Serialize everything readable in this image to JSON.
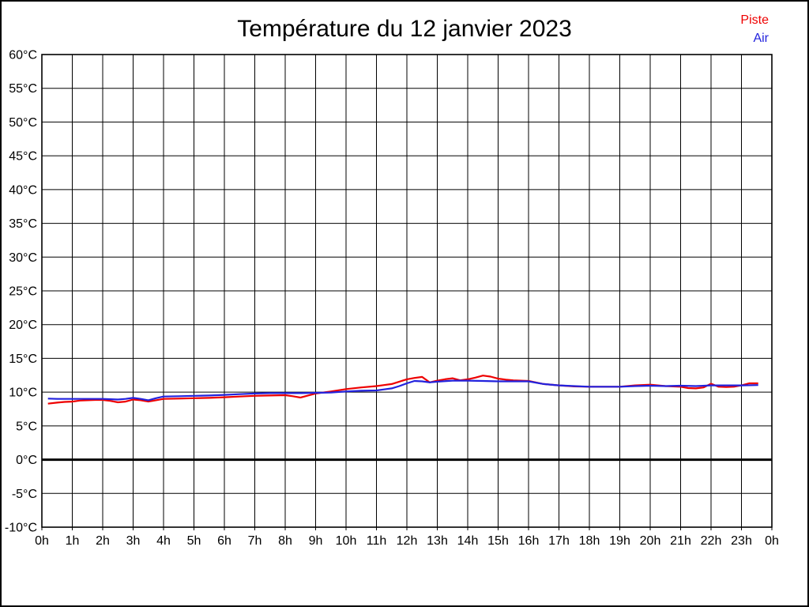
{
  "page": {
    "background": "#ffffff",
    "border_color": "#000000"
  },
  "chart_data": {
    "type": "line",
    "title": "Température du 12 janvier 2023",
    "xlabel": "",
    "ylabel": "",
    "xlim": [
      0,
      24
    ],
    "ylim": [
      -10,
      60
    ],
    "grid": true,
    "grid_color": "#000000",
    "zero_line": {
      "value": 0,
      "color": "#000000",
      "width": 3
    },
    "x_ticks": [
      {
        "v": 0,
        "label": "0h"
      },
      {
        "v": 1,
        "label": "1h"
      },
      {
        "v": 2,
        "label": "2h"
      },
      {
        "v": 3,
        "label": "3h"
      },
      {
        "v": 4,
        "label": "4h"
      },
      {
        "v": 5,
        "label": "5h"
      },
      {
        "v": 6,
        "label": "6h"
      },
      {
        "v": 7,
        "label": "7h"
      },
      {
        "v": 8,
        "label": "8h"
      },
      {
        "v": 9,
        "label": "9h"
      },
      {
        "v": 10,
        "label": "10h"
      },
      {
        "v": 11,
        "label": "11h"
      },
      {
        "v": 12,
        "label": "12h"
      },
      {
        "v": 13,
        "label": "13h"
      },
      {
        "v": 14,
        "label": "14h"
      },
      {
        "v": 15,
        "label": "15h"
      },
      {
        "v": 16,
        "label": "16h"
      },
      {
        "v": 17,
        "label": "17h"
      },
      {
        "v": 18,
        "label": "18h"
      },
      {
        "v": 19,
        "label": "19h"
      },
      {
        "v": 20,
        "label": "20h"
      },
      {
        "v": 21,
        "label": "21h"
      },
      {
        "v": 22,
        "label": "22h"
      },
      {
        "v": 23,
        "label": "23h"
      },
      {
        "v": 24,
        "label": "0h"
      }
    ],
    "y_ticks": [
      {
        "v": -10,
        "label": "-10°C"
      },
      {
        "v": -5,
        "label": "-5°C"
      },
      {
        "v": 0,
        "label": "0°C"
      },
      {
        "v": 5,
        "label": "5°C"
      },
      {
        "v": 10,
        "label": "10°C"
      },
      {
        "v": 15,
        "label": "15°C"
      },
      {
        "v": 20,
        "label": "20°C"
      },
      {
        "v": 25,
        "label": "25°C"
      },
      {
        "v": 30,
        "label": "30°C"
      },
      {
        "v": 35,
        "label": "35°C"
      },
      {
        "v": 40,
        "label": "40°C"
      },
      {
        "v": 45,
        "label": "45°C"
      },
      {
        "v": 50,
        "label": "50°C"
      },
      {
        "v": 55,
        "label": "55°C"
      },
      {
        "v": 60,
        "label": "60°C"
      }
    ],
    "legend": {
      "position": "top-right",
      "entries": [
        {
          "name": "Piste",
          "color": "#ee0000"
        },
        {
          "name": "Air",
          "color": "#2222dd"
        }
      ]
    },
    "series": [
      {
        "name": "Piste",
        "color": "#ee0000",
        "points": [
          [
            0.2,
            8.3
          ],
          [
            0.5,
            8.45
          ],
          [
            0.75,
            8.55
          ],
          [
            1,
            8.6
          ],
          [
            1.25,
            8.75
          ],
          [
            1.5,
            8.8
          ],
          [
            1.75,
            8.85
          ],
          [
            2,
            8.85
          ],
          [
            2.25,
            8.7
          ],
          [
            2.5,
            8.5
          ],
          [
            2.75,
            8.6
          ],
          [
            3,
            8.9
          ],
          [
            3.25,
            8.8
          ],
          [
            3.5,
            8.6
          ],
          [
            3.75,
            8.8
          ],
          [
            4,
            9.0
          ],
          [
            4.5,
            9.05
          ],
          [
            5,
            9.1
          ],
          [
            5.5,
            9.15
          ],
          [
            6,
            9.25
          ],
          [
            6.5,
            9.35
          ],
          [
            7,
            9.45
          ],
          [
            7.5,
            9.5
          ],
          [
            8,
            9.55
          ],
          [
            8.25,
            9.4
          ],
          [
            8.5,
            9.2
          ],
          [
            8.75,
            9.5
          ],
          [
            9,
            9.8
          ],
          [
            9.5,
            10.1
          ],
          [
            10,
            10.45
          ],
          [
            10.5,
            10.7
          ],
          [
            11,
            10.9
          ],
          [
            11.25,
            11.05
          ],
          [
            11.5,
            11.2
          ],
          [
            11.75,
            11.55
          ],
          [
            12,
            11.9
          ],
          [
            12.25,
            12.1
          ],
          [
            12.5,
            12.25
          ],
          [
            12.75,
            11.45
          ],
          [
            13,
            11.7
          ],
          [
            13.25,
            11.9
          ],
          [
            13.5,
            12.05
          ],
          [
            13.75,
            11.75
          ],
          [
            14,
            11.9
          ],
          [
            14.25,
            12.15
          ],
          [
            14.5,
            12.45
          ],
          [
            14.75,
            12.3
          ],
          [
            15,
            12.0
          ],
          [
            15.25,
            11.85
          ],
          [
            15.5,
            11.75
          ],
          [
            16,
            11.65
          ],
          [
            16.5,
            11.2
          ],
          [
            17,
            11.0
          ],
          [
            17.5,
            10.85
          ],
          [
            18,
            10.8
          ],
          [
            18.5,
            10.8
          ],
          [
            19,
            10.8
          ],
          [
            19.5,
            11.0
          ],
          [
            20,
            11.1
          ],
          [
            20.5,
            10.9
          ],
          [
            21,
            10.8
          ],
          [
            21.25,
            10.6
          ],
          [
            21.5,
            10.55
          ],
          [
            21.75,
            10.7
          ],
          [
            22,
            11.25
          ],
          [
            22.25,
            10.8
          ],
          [
            22.5,
            10.75
          ],
          [
            22.75,
            10.8
          ],
          [
            23,
            11.0
          ],
          [
            23.25,
            11.3
          ],
          [
            23.55,
            11.3
          ]
        ]
      },
      {
        "name": "Air",
        "color": "#2222dd",
        "points": [
          [
            0.2,
            9.05
          ],
          [
            0.5,
            9.0
          ],
          [
            1,
            9.0
          ],
          [
            1.5,
            9.0
          ],
          [
            2,
            9.0
          ],
          [
            2.5,
            8.9
          ],
          [
            2.75,
            9.0
          ],
          [
            3,
            9.15
          ],
          [
            3.25,
            9.0
          ],
          [
            3.5,
            8.8
          ],
          [
            3.75,
            9.1
          ],
          [
            4,
            9.35
          ],
          [
            4.5,
            9.4
          ],
          [
            5,
            9.45
          ],
          [
            5.5,
            9.5
          ],
          [
            6,
            9.6
          ],
          [
            6.5,
            9.7
          ],
          [
            7,
            9.8
          ],
          [
            7.5,
            9.85
          ],
          [
            8,
            9.85
          ],
          [
            8.5,
            9.85
          ],
          [
            9,
            9.9
          ],
          [
            9.5,
            9.95
          ],
          [
            10,
            10.1
          ],
          [
            10.5,
            10.2
          ],
          [
            11,
            10.25
          ],
          [
            11.25,
            10.4
          ],
          [
            11.5,
            10.55
          ],
          [
            11.75,
            10.9
          ],
          [
            12,
            11.3
          ],
          [
            12.25,
            11.65
          ],
          [
            12.5,
            11.6
          ],
          [
            12.75,
            11.45
          ],
          [
            13,
            11.55
          ],
          [
            13.5,
            11.7
          ],
          [
            14,
            11.7
          ],
          [
            14.5,
            11.65
          ],
          [
            15,
            11.6
          ],
          [
            15.5,
            11.6
          ],
          [
            16,
            11.6
          ],
          [
            16.5,
            11.2
          ],
          [
            17,
            11.0
          ],
          [
            17.5,
            10.9
          ],
          [
            18,
            10.8
          ],
          [
            18.5,
            10.8
          ],
          [
            19,
            10.8
          ],
          [
            19.5,
            10.9
          ],
          [
            20,
            10.95
          ],
          [
            20.5,
            10.9
          ],
          [
            21,
            10.95
          ],
          [
            21.5,
            10.9
          ],
          [
            22,
            11.0
          ],
          [
            22.5,
            11.0
          ],
          [
            23,
            11.0
          ],
          [
            23.55,
            11.05
          ]
        ]
      }
    ]
  }
}
